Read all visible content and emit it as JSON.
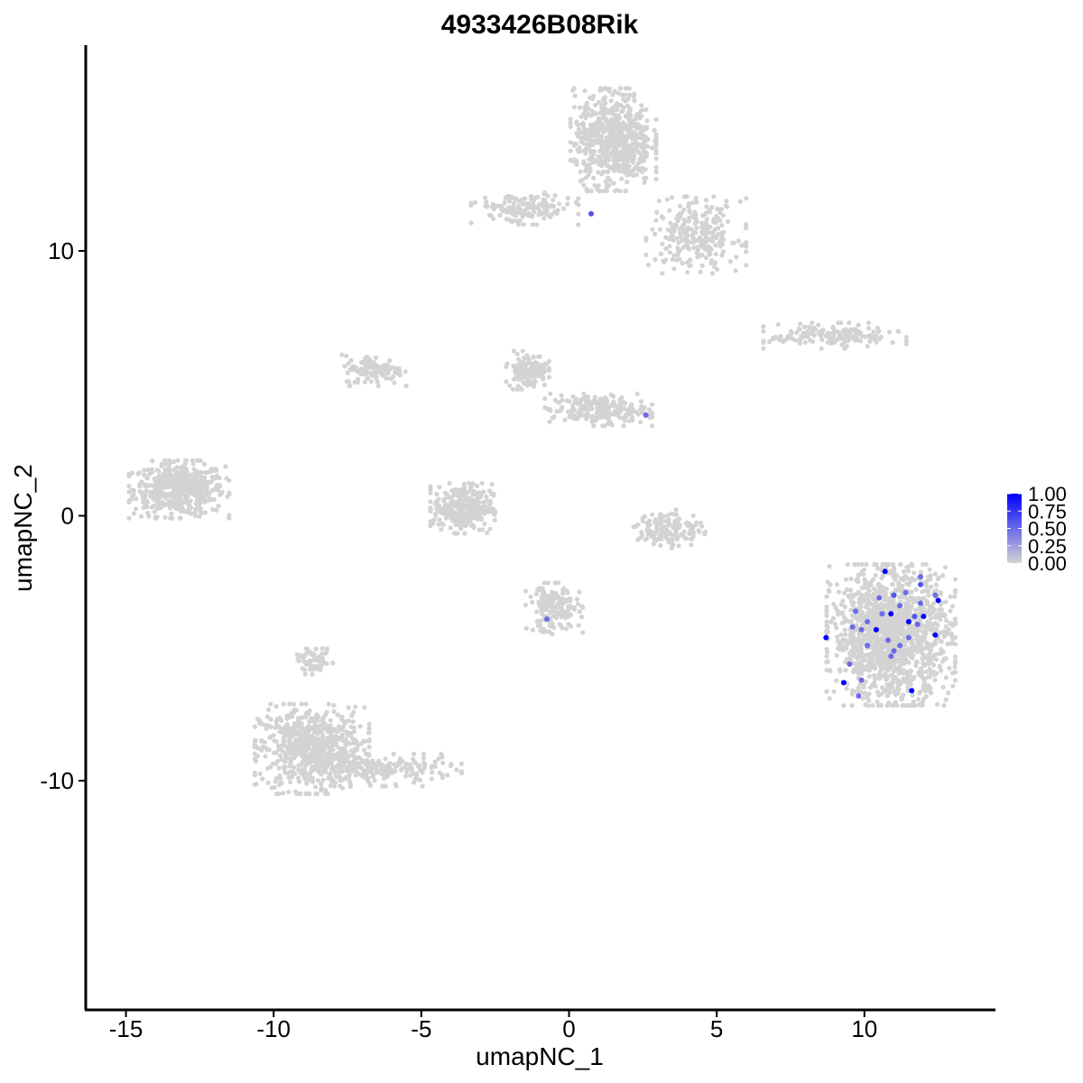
{
  "chart_data": {
    "type": "scatter",
    "title": "4933426B08Rik",
    "xlabel": "umapNC_1",
    "ylabel": "umapNC_2",
    "xlim": [
      -16.5,
      14.5
    ],
    "ylim": [
      -18.4,
      17.9
    ],
    "x_ticks": [
      -15,
      -10,
      -5,
      0,
      5,
      10
    ],
    "y_ticks": [
      -10,
      0,
      10
    ],
    "x_tick_labels": [
      "-15",
      "-10",
      "-5",
      "0",
      "5",
      "10"
    ],
    "y_tick_labels": [
      "-10",
      "0",
      "10"
    ],
    "color_scale": {
      "low_color": "#d3d3d3",
      "high_color": "#0000ff",
      "breaks": [
        0.0,
        0.25,
        0.5,
        0.75,
        1.0
      ],
      "labels": [
        "0.00",
        "0.25",
        "0.50",
        "0.75",
        "1.00"
      ],
      "placement": "right"
    },
    "clusters": [
      {
        "cx": -13.2,
        "cy": 1.0,
        "rx": 1.4,
        "ry": 0.9,
        "n": 520
      },
      {
        "cx": -8.7,
        "cy": -8.8,
        "rx": 1.6,
        "ry": 1.4,
        "n": 700
      },
      {
        "cx": -6.3,
        "cy": -9.6,
        "rx": 2.2,
        "ry": 0.5,
        "n": 180
      },
      {
        "cx": -3.6,
        "cy": 0.3,
        "rx": 0.9,
        "ry": 0.8,
        "n": 320
      },
      {
        "cx": -6.6,
        "cy": 5.5,
        "rx": 0.9,
        "ry": 0.5,
        "n": 120
      },
      {
        "cx": -1.4,
        "cy": 5.5,
        "rx": 0.6,
        "ry": 0.6,
        "n": 140
      },
      {
        "cx": 1.0,
        "cy": 4.0,
        "rx": 1.5,
        "ry": 0.5,
        "n": 220
      },
      {
        "cx": 1.5,
        "cy": 14.2,
        "rx": 1.2,
        "ry": 1.6,
        "n": 650
      },
      {
        "cx": 4.3,
        "cy": 10.6,
        "rx": 1.4,
        "ry": 1.2,
        "n": 260
      },
      {
        "cx": -1.5,
        "cy": 11.6,
        "rx": 1.5,
        "ry": 0.5,
        "n": 150
      },
      {
        "cx": 9.0,
        "cy": 6.8,
        "rx": 2.0,
        "ry": 0.4,
        "n": 160
      },
      {
        "cx": 10.9,
        "cy": -4.5,
        "rx": 1.8,
        "ry": 2.2,
        "n": 1400
      },
      {
        "cx": -0.5,
        "cy": -3.5,
        "rx": 0.8,
        "ry": 0.8,
        "n": 180
      },
      {
        "cx": 3.4,
        "cy": -0.5,
        "rx": 1.0,
        "ry": 0.6,
        "n": 150
      },
      {
        "cx": -8.6,
        "cy": -5.5,
        "rx": 0.5,
        "ry": 0.4,
        "n": 60
      }
    ],
    "highlighted_points": [
      {
        "x": 0.75,
        "y": 11.4,
        "value": 0.6
      },
      {
        "x": 2.6,
        "y": 3.8,
        "value": 0.5
      },
      {
        "x": -0.75,
        "y": -3.9,
        "value": 0.5
      },
      {
        "x": 10.7,
        "y": -2.1,
        "value": 1.0
      },
      {
        "x": 11.9,
        "y": -2.3,
        "value": 0.5
      },
      {
        "x": 11.9,
        "y": -2.6,
        "value": 0.6
      },
      {
        "x": 11.4,
        "y": -2.9,
        "value": 0.5
      },
      {
        "x": 11.0,
        "y": -3.0,
        "value": 0.6
      },
      {
        "x": 10.5,
        "y": -3.1,
        "value": 0.5
      },
      {
        "x": 12.4,
        "y": -3.0,
        "value": 0.5
      },
      {
        "x": 12.5,
        "y": -3.2,
        "value": 1.0
      },
      {
        "x": 11.9,
        "y": -3.3,
        "value": 0.5
      },
      {
        "x": 11.2,
        "y": -3.4,
        "value": 0.5
      },
      {
        "x": 10.6,
        "y": -3.7,
        "value": 0.5
      },
      {
        "x": 10.9,
        "y": -3.7,
        "value": 1.0
      },
      {
        "x": 11.7,
        "y": -3.8,
        "value": 0.6
      },
      {
        "x": 12.0,
        "y": -3.8,
        "value": 1.0
      },
      {
        "x": 11.5,
        "y": -4.0,
        "value": 1.0
      },
      {
        "x": 10.1,
        "y": -4.0,
        "value": 0.5
      },
      {
        "x": 9.7,
        "y": -3.6,
        "value": 0.5
      },
      {
        "x": 11.8,
        "y": -4.1,
        "value": 0.5
      },
      {
        "x": 9.6,
        "y": -4.2,
        "value": 0.5
      },
      {
        "x": 9.9,
        "y": -4.3,
        "value": 0.5
      },
      {
        "x": 10.4,
        "y": -4.3,
        "value": 1.0
      },
      {
        "x": 12.4,
        "y": -4.5,
        "value": 1.0
      },
      {
        "x": 11.5,
        "y": -4.6,
        "value": 0.5
      },
      {
        "x": 8.7,
        "y": -4.6,
        "value": 1.0
      },
      {
        "x": 10.8,
        "y": -4.7,
        "value": 0.5
      },
      {
        "x": 10.1,
        "y": -4.9,
        "value": 0.5
      },
      {
        "x": 11.2,
        "y": -4.9,
        "value": 0.5
      },
      {
        "x": 11.0,
        "y": -5.1,
        "value": 0.5
      },
      {
        "x": 10.9,
        "y": -5.3,
        "value": 0.5
      },
      {
        "x": 9.5,
        "y": -5.6,
        "value": 0.5
      },
      {
        "x": 9.3,
        "y": -6.3,
        "value": 1.0
      },
      {
        "x": 9.9,
        "y": -6.2,
        "value": 0.5
      },
      {
        "x": 11.6,
        "y": -6.6,
        "value": 1.0
      },
      {
        "x": 9.8,
        "y": -6.8,
        "value": 0.5
      }
    ]
  }
}
